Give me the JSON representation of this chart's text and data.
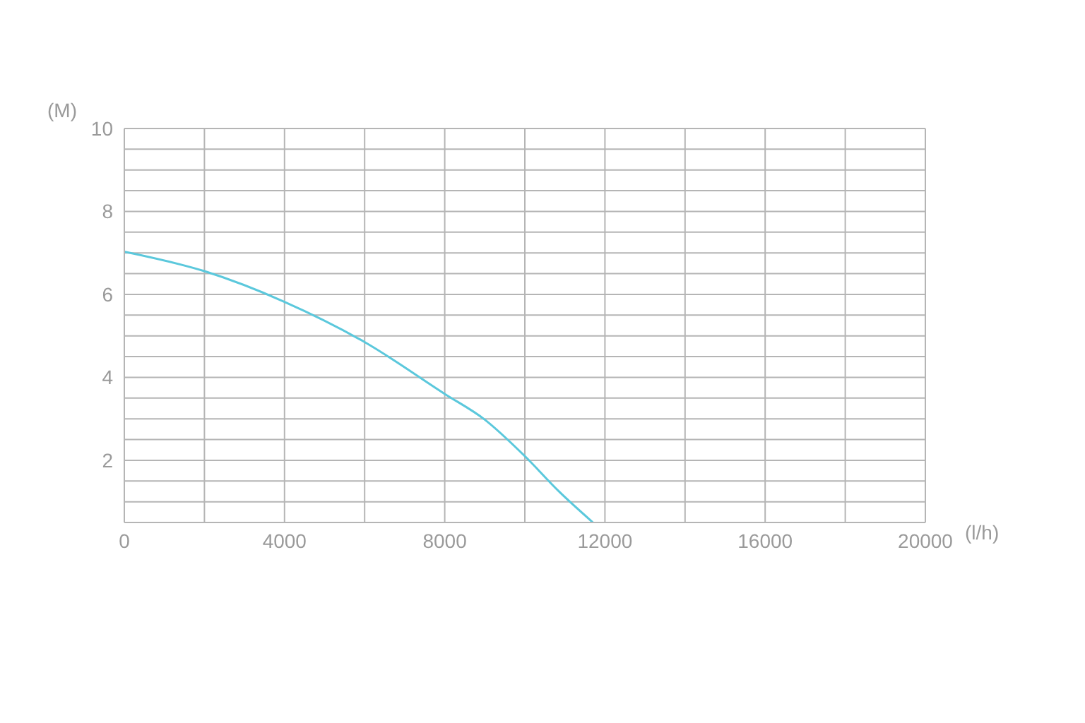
{
  "chart_data": {
    "type": "line",
    "xlabel": "(l/h)",
    "ylabel": "(M)",
    "x": [
      0,
      2000,
      4000,
      6000,
      8000,
      9000,
      10000,
      10850,
      11700
    ],
    "series": [
      {
        "color": "#5bc8dc",
        "values": [
          7.03,
          6.56,
          5.82,
          4.85,
          3.6,
          2.98,
          2.1,
          1.25,
          0.5
        ]
      }
    ],
    "xlim": [
      0,
      20000
    ],
    "xticks": [
      0,
      {
        "value": 2000,
        "label": null
      },
      4000,
      {
        "value": 6000,
        "label": null
      },
      8000,
      {
        "value": 10000,
        "label": null
      },
      12000,
      {
        "value": 14000,
        "label": null
      },
      16000,
      {
        "value": 18000,
        "label": null
      },
      20000
    ],
    "ylim": [
      0.5,
      10
    ],
    "yticks": [
      {
        "value": 0.5,
        "label": null
      },
      {
        "value": 1,
        "label": null
      },
      {
        "value": 1.5,
        "label": null
      },
      2,
      {
        "value": 2.5,
        "label": null
      },
      {
        "value": 3,
        "label": null
      },
      {
        "value": 3.5,
        "label": null
      },
      4,
      {
        "value": 4.5,
        "label": null
      },
      {
        "value": 5,
        "label": null
      },
      {
        "value": 5.5,
        "label": null
      },
      6,
      {
        "value": 6.5,
        "label": null
      },
      {
        "value": 7,
        "label": null
      },
      {
        "value": 7.5,
        "label": null
      },
      8,
      {
        "value": 8.5,
        "label": null
      },
      {
        "value": 9,
        "label": null
      },
      {
        "value": 9.5,
        "label": null
      },
      10
    ],
    "grid": true,
    "legend": false,
    "marker": "none",
    "line_style": "solid"
  }
}
